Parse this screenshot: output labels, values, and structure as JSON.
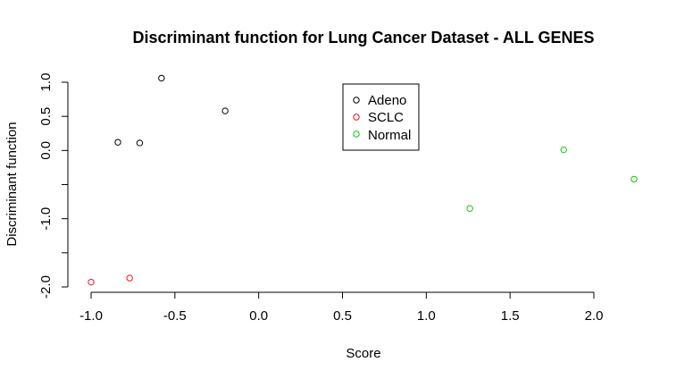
{
  "chart_data": {
    "type": "scatter",
    "title": "Discriminant function for Lung Cancer Dataset - ALL GENES",
    "xlabel": "Score",
    "ylabel": "Discriminant function",
    "xlim": [
      -1.0,
      2.0
    ],
    "ylim": [
      -2.0,
      1.0
    ],
    "x_ticks": [
      -1.0,
      -0.5,
      0.0,
      0.5,
      1.0,
      1.5,
      2.0
    ],
    "x_tick_labels": [
      "-1.0",
      "-0.5",
      "0.0",
      "0.5",
      "1.0",
      "1.5",
      "2.0"
    ],
    "y_ticks": [
      -2.0,
      -1.5,
      -1.0,
      -0.5,
      0.0,
      0.5,
      1.0
    ],
    "y_tick_labels": [
      "-2.0",
      "",
      "-1.0",
      "",
      "0.0",
      "0.5",
      "1.0"
    ],
    "grid": false,
    "legend_position": "top-center",
    "series": [
      {
        "name": "Adeno",
        "color": "#000000",
        "marker": "open-circle",
        "points": [
          {
            "x": -0.58,
            "y": 1.06
          },
          {
            "x": -0.84,
            "y": 0.12
          },
          {
            "x": -0.71,
            "y": 0.11
          },
          {
            "x": -0.2,
            "y": 0.58
          }
        ]
      },
      {
        "name": "SCLC",
        "color": "#e8131b",
        "marker": "open-circle",
        "points": [
          {
            "x": -1.0,
            "y": -1.93
          },
          {
            "x": -0.77,
            "y": -1.87
          }
        ]
      },
      {
        "name": "Normal",
        "color": "#14c414",
        "marker": "open-circle",
        "points": [
          {
            "x": 1.26,
            "y": -0.85
          },
          {
            "x": 1.82,
            "y": 0.01
          },
          {
            "x": 2.24,
            "y": -0.42
          }
        ]
      }
    ]
  }
}
